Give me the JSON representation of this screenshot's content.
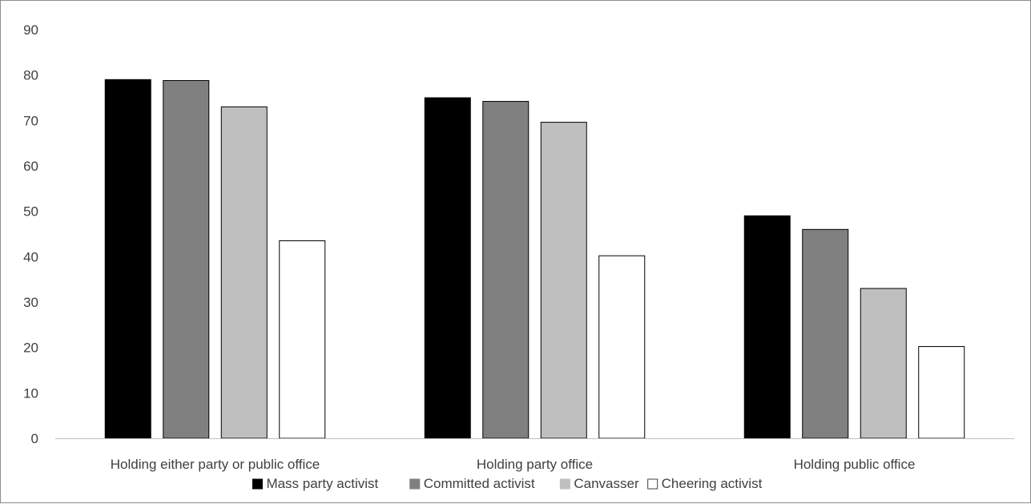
{
  "chart_data": {
    "type": "bar",
    "title": "",
    "xlabel": "",
    "ylabel": "",
    "ylim": [
      0,
      90
    ],
    "yticks": [
      0,
      10,
      20,
      30,
      40,
      50,
      60,
      70,
      80,
      90
    ],
    "grid": false,
    "legend_position": "bottom",
    "categories": [
      "Holding either party or public office",
      "Holding party office",
      "Holding public office"
    ],
    "series": [
      {
        "name": "Mass party activist",
        "color": "#000000",
        "values": [
          79,
          75,
          49
        ]
      },
      {
        "name": "Committed activist",
        "color": "#808080",
        "values": [
          78.8,
          74.2,
          46
        ]
      },
      {
        "name": "Canvasser",
        "color": "#bfbfbf",
        "values": [
          73,
          69.6,
          33
        ]
      },
      {
        "name": "Cheering activist",
        "color": "#ffffff",
        "values": [
          43.5,
          40.2,
          20.2
        ]
      }
    ]
  }
}
